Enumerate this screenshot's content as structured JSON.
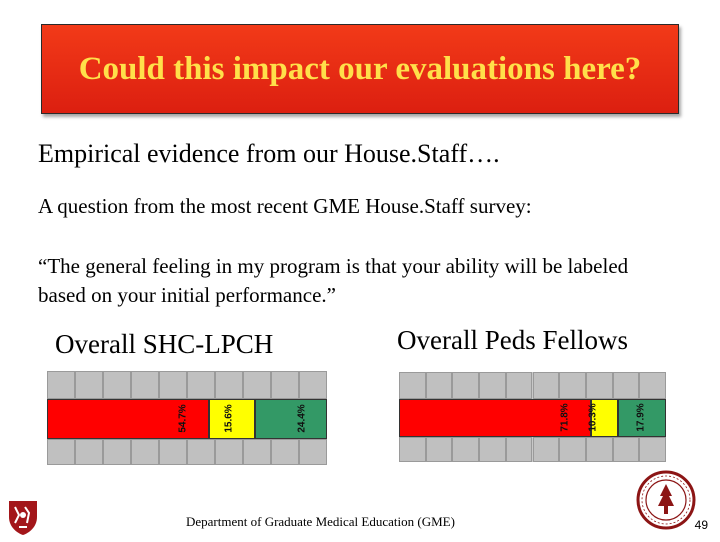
{
  "title": "Could this impact our evaluations here?",
  "lines": {
    "l1": "Empirical evidence from our House.Staff….",
    "l2": "A question from the most recent GME House.Staff survey:",
    "l3": "“The general feeling in my program is that your ability will be labeled based on your initial performance.”"
  },
  "chart_data": [
    {
      "type": "bar",
      "title": "Overall SHC-LPCH",
      "orientation": "horizontal-stacked",
      "series": [
        {
          "value": 54.7,
          "label": "54.7%",
          "color": "#ff0000"
        },
        {
          "value": 15.6,
          "label": "15.6%",
          "color": "#ffff00"
        },
        {
          "value": 24.4,
          "label": "24.4%",
          "color": "#339966"
        }
      ]
    },
    {
      "type": "bar",
      "title": "Overall Peds Fellows",
      "orientation": "horizontal-stacked",
      "series": [
        {
          "value": 71.8,
          "label": "71.8%",
          "color": "#ff0000"
        },
        {
          "value": 10.3,
          "label": "10.3%",
          "color": "#ffff00"
        },
        {
          "value": 17.9,
          "label": "17.9%",
          "color": "#339966"
        }
      ]
    }
  ],
  "footer": "Department of Graduate Medical Education (GME)",
  "page_number": "49"
}
